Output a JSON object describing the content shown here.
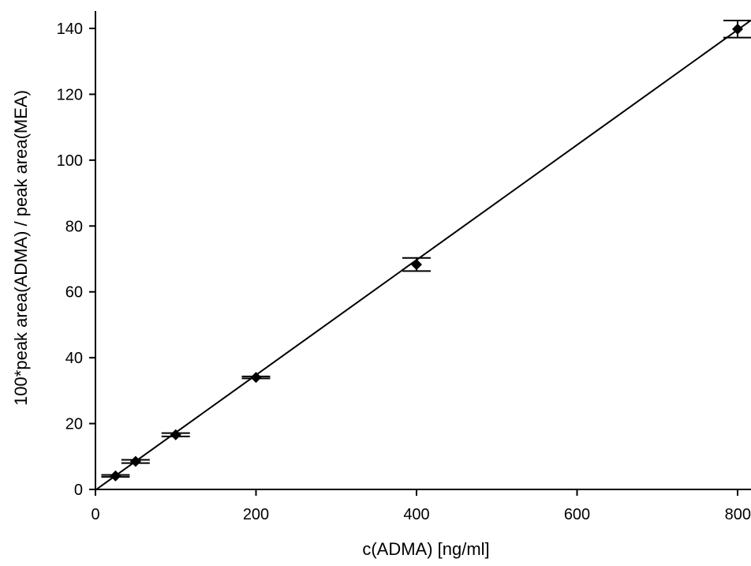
{
  "chart_data": {
    "type": "scatter",
    "title": "",
    "xlabel": "c(ADMA) [ng/ml]",
    "ylabel": "100*peak area(ADMA) / peak area(MEA)",
    "xlim": [
      0,
      800
    ],
    "ylim": [
      0,
      140
    ],
    "xticks": [
      "0",
      "200",
      "400",
      "600",
      "800"
    ],
    "yticks": [
      "0",
      "20",
      "40",
      "60",
      "80",
      "100",
      "120",
      "140"
    ],
    "grid": false,
    "legend": "none",
    "marker": "diamond",
    "color": "#000000",
    "points": [
      {
        "x": 25,
        "y": 4.1,
        "err": 0.3
      },
      {
        "x": 50,
        "y": 8.5,
        "err": 0.5
      },
      {
        "x": 100,
        "y": 16.6,
        "err": 0.5
      },
      {
        "x": 200,
        "y": 34.0,
        "err": 0.3
      },
      {
        "x": 400,
        "y": 68.3,
        "err": 2.0
      },
      {
        "x": 800,
        "y": 139.8,
        "err": 2.6
      }
    ],
    "fit_line": {
      "type": "linear",
      "x_range": [
        0,
        800
      ],
      "slope": 0.1747,
      "intercept": -0.2
    }
  }
}
